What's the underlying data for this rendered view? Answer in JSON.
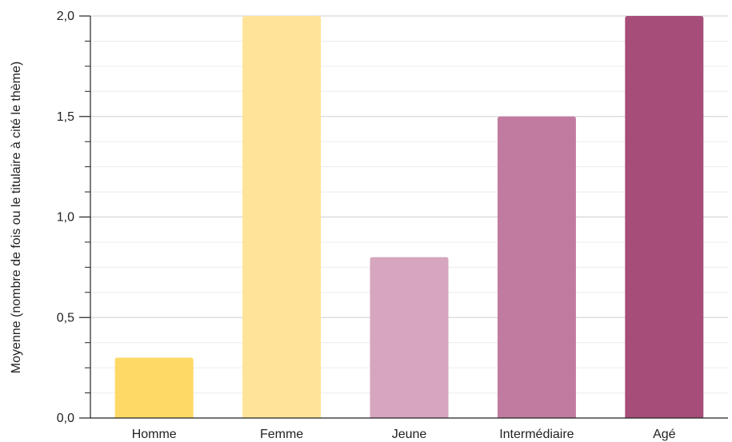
{
  "chart_data": {
    "type": "bar",
    "title": "",
    "xlabel": "",
    "ylabel": "Moyenne (nombre de fois ou le titulaire à cité le thème)",
    "categories": [
      "Homme",
      "Femme",
      "Jeune",
      "Intermédiaire",
      "Agé"
    ],
    "values": [
      0.3,
      2.0,
      0.8,
      1.5,
      2.0
    ],
    "colors": [
      "#FFD966",
      "#FFE399",
      "#D5A6BD",
      "#C27BA0",
      "#A64D79"
    ],
    "ylim": [
      0,
      2
    ],
    "yticks": [
      0,
      0.5,
      1,
      1.5,
      2
    ],
    "ytick_labels": [
      "0,0",
      "0,5",
      "1,0",
      "1,5",
      "2,0"
    ],
    "grid": true,
    "legend": "none"
  }
}
